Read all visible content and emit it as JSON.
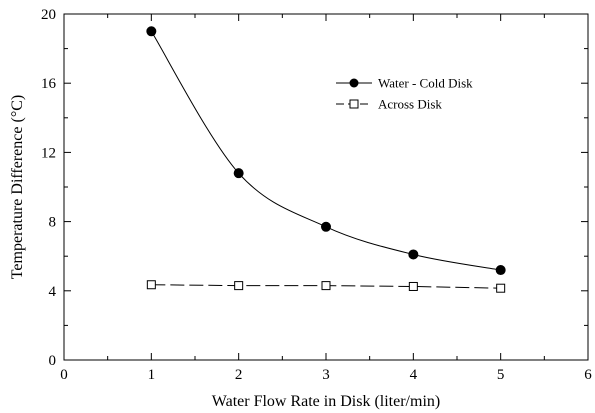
{
  "chart_data": {
    "type": "line",
    "title": "",
    "xlabel": "Water Flow Rate in Disk (liter/min)",
    "ylabel": "Temperature Difference (°C)",
    "xlim": [
      0,
      6
    ],
    "ylim": [
      0,
      20
    ],
    "xticks": [
      "0",
      "1",
      "2",
      "3",
      "4",
      "5",
      "6"
    ],
    "yticks": [
      "0",
      "4",
      "8",
      "12",
      "16",
      "20"
    ],
    "grid": false,
    "legend_position": "upper-right",
    "series": [
      {
        "name": "Water - Cold Disk",
        "marker": "filled-circle",
        "line": "solid-smooth",
        "color": "#000000",
        "x": [
          1,
          2,
          3,
          4,
          5
        ],
        "y": [
          19.0,
          10.8,
          7.7,
          6.1,
          5.2
        ]
      },
      {
        "name": "Across Disk",
        "marker": "open-square",
        "line": "dashed",
        "color": "#000000",
        "x": [
          1,
          2,
          3,
          4,
          5
        ],
        "y": [
          4.35,
          4.3,
          4.3,
          4.25,
          4.15
        ]
      }
    ]
  }
}
